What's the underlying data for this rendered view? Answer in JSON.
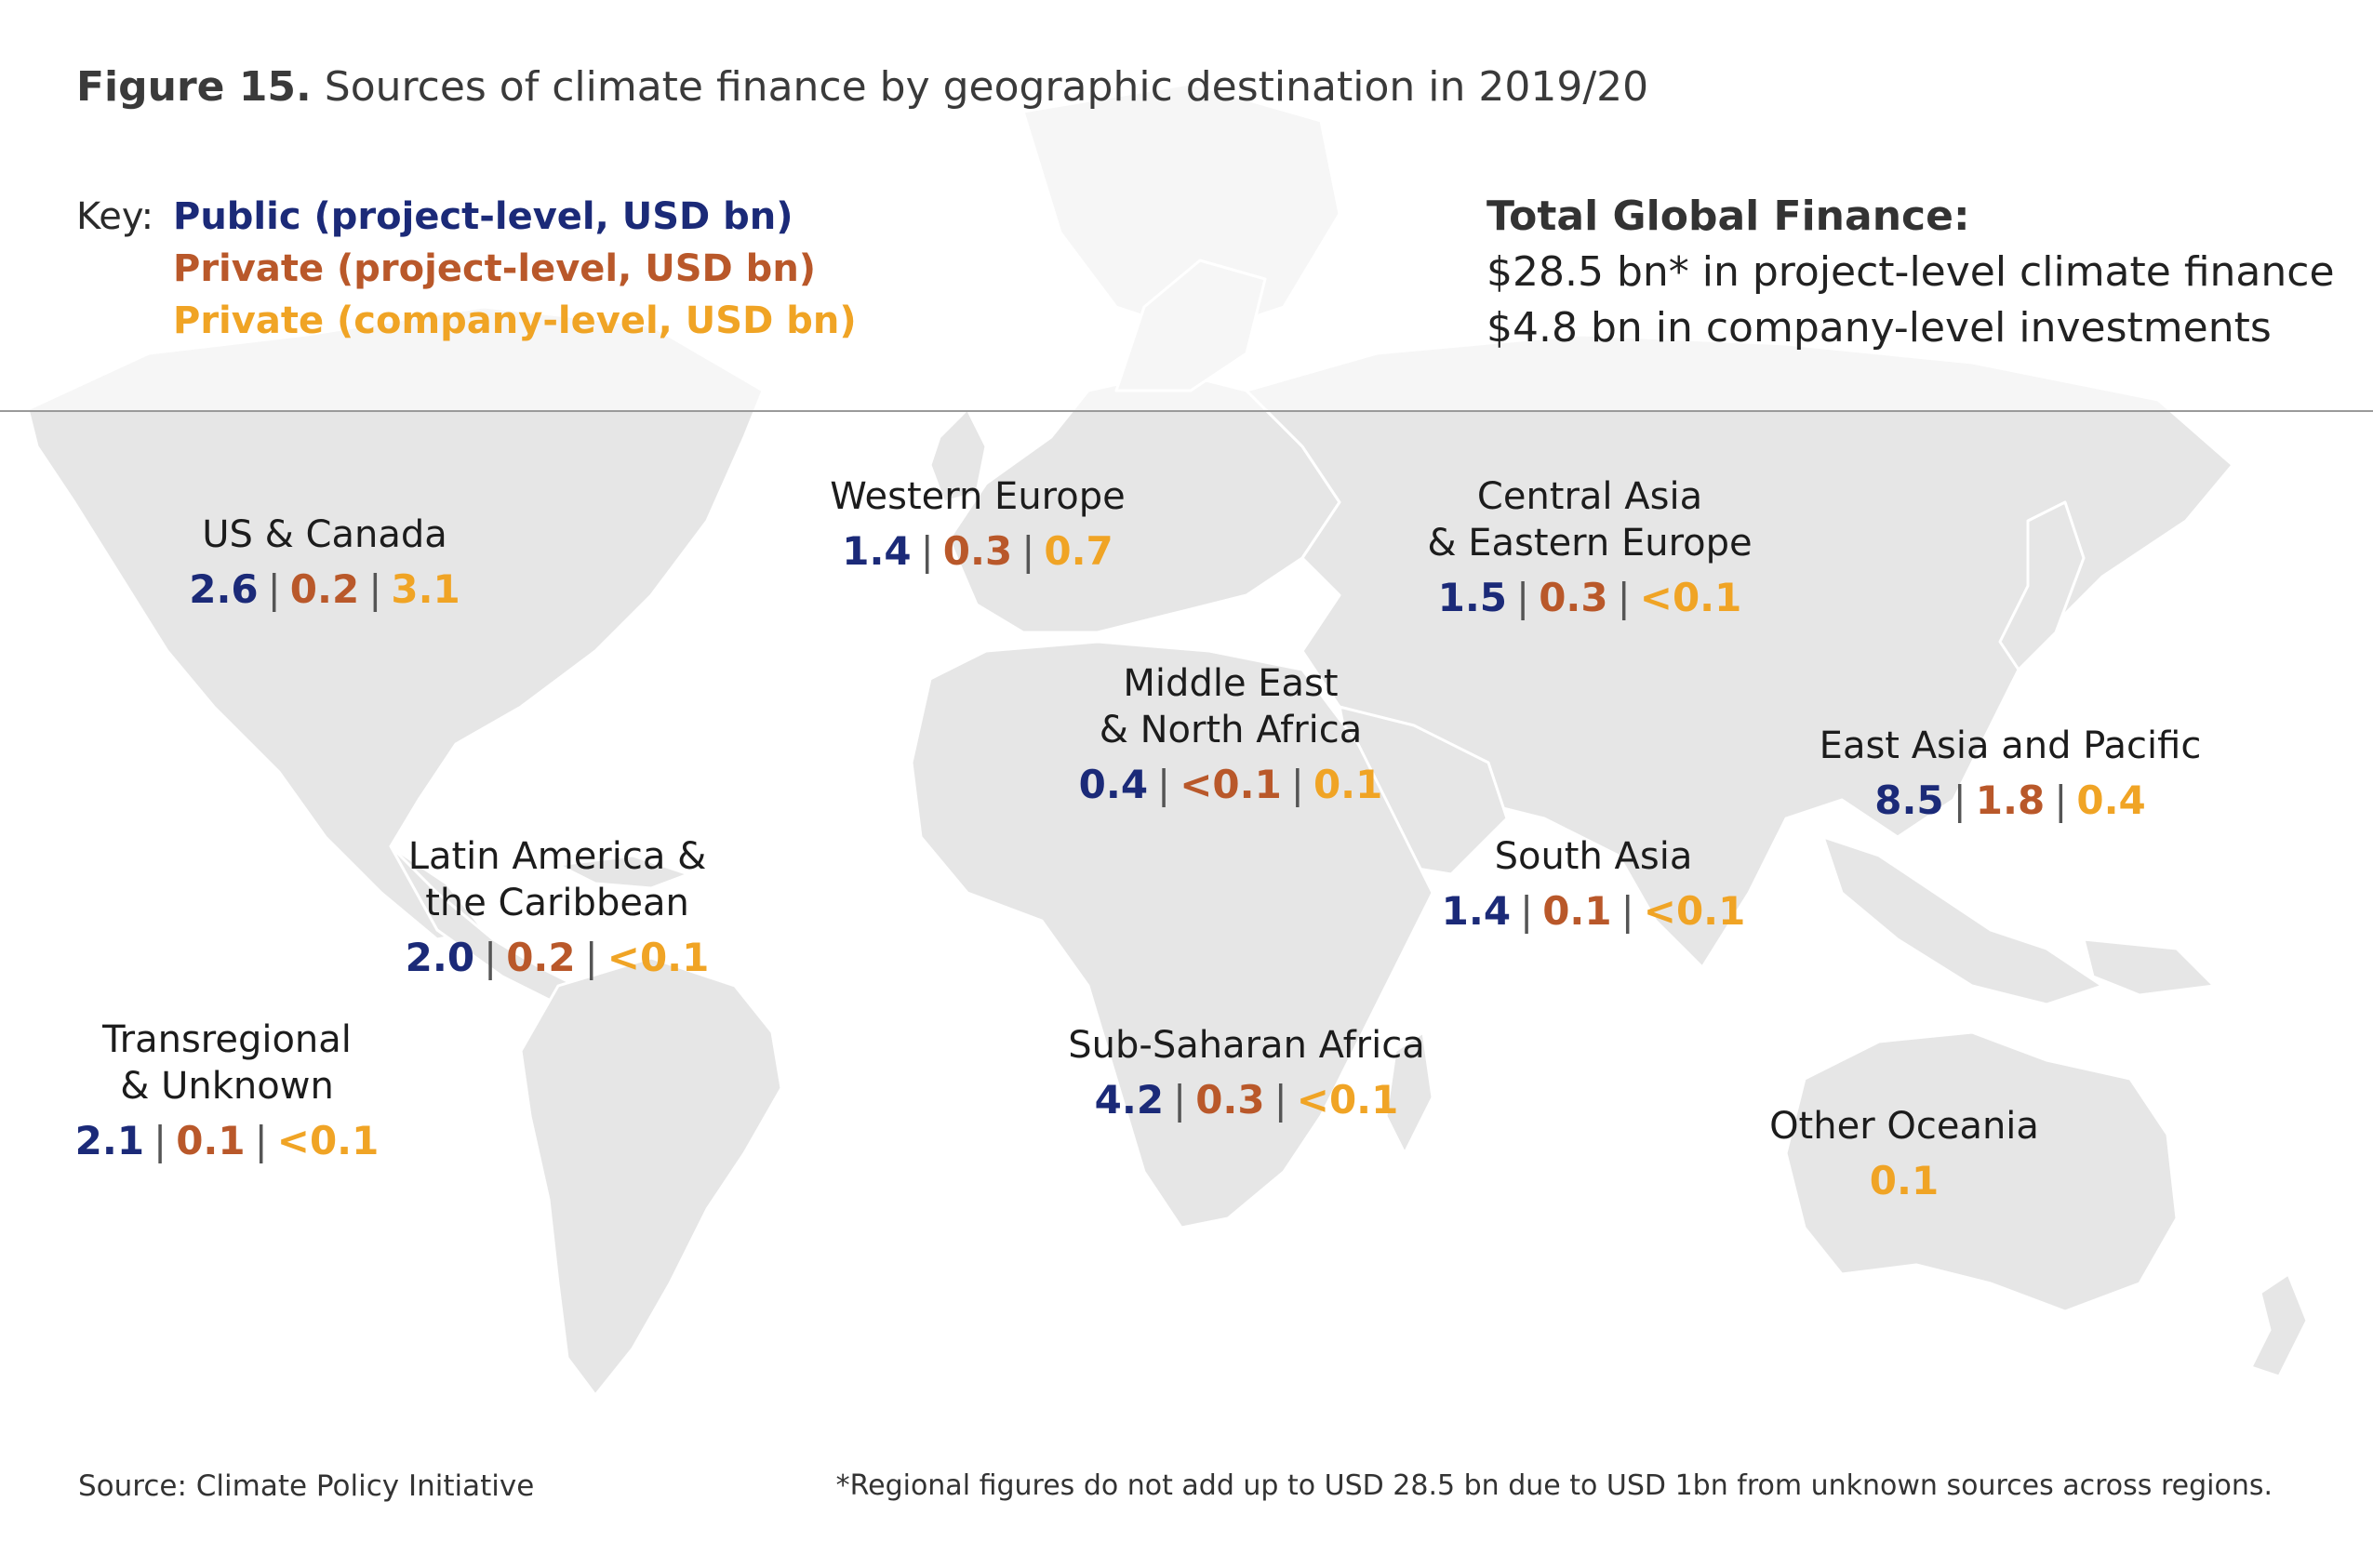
{
  "figure": {
    "number": "Figure 15.",
    "title": "Sources of climate finance by geographic destination in 2019/20"
  },
  "key": {
    "label": "Key:",
    "public": "Public (project-level, USD bn)",
    "private_project": "Private (project-level, USD bn)",
    "private_company": "Private (company-level, USD bn)"
  },
  "total": {
    "title": "Total Global Finance:",
    "line1": "$28.5 bn* in project-level climate finance",
    "line2": "$4.8 bn in company-level investments"
  },
  "colors": {
    "public": "#1b2a78",
    "private_project": "#b9582a",
    "private_company": "#f0a425",
    "land": "#e6e6e6"
  },
  "regions": {
    "us_canada": {
      "name": "US & Canada",
      "public": "2.6",
      "private_project": "0.2",
      "private_company": "3.1"
    },
    "western_europe": {
      "name": "Western Europe",
      "public": "1.4",
      "private_project": "0.3",
      "private_company": "0.7"
    },
    "central_asia": {
      "name_line1": "Central Asia",
      "name_line2": "& Eastern Europe",
      "public": "1.5",
      "private_project": "0.3",
      "private_company": "<0.1"
    },
    "mena": {
      "name_line1": "Middle East",
      "name_line2": "& North Africa",
      "public": "0.4",
      "private_project": "<0.1",
      "private_company": "0.1"
    },
    "east_asia": {
      "name": "East Asia and Pacific",
      "public": "8.5",
      "private_project": "1.8",
      "private_company": "0.4"
    },
    "latin_america": {
      "name_line1": "Latin America &",
      "name_line2": "the Caribbean",
      "public": "2.0",
      "private_project": "0.2",
      "private_company": "<0.1"
    },
    "south_asia": {
      "name": "South Asia",
      "public": "1.4",
      "private_project": "0.1",
      "private_company": "<0.1"
    },
    "transregional": {
      "name_line1": "Transregional",
      "name_line2": "& Unknown",
      "public": "2.1",
      "private_project": "0.1",
      "private_company": "<0.1"
    },
    "sub_saharan": {
      "name": "Sub-Saharan Africa",
      "public": "4.2",
      "private_project": "0.3",
      "private_company": "<0.1"
    },
    "other_oceania": {
      "name": "Other Oceania",
      "private_company": "0.1"
    }
  },
  "separator": "|",
  "footer": {
    "source": "Source: Climate Policy Initiative",
    "note": "*Regional figures do not add up to USD 28.5 bn due to USD 1bn from unknown sources across regions."
  }
}
